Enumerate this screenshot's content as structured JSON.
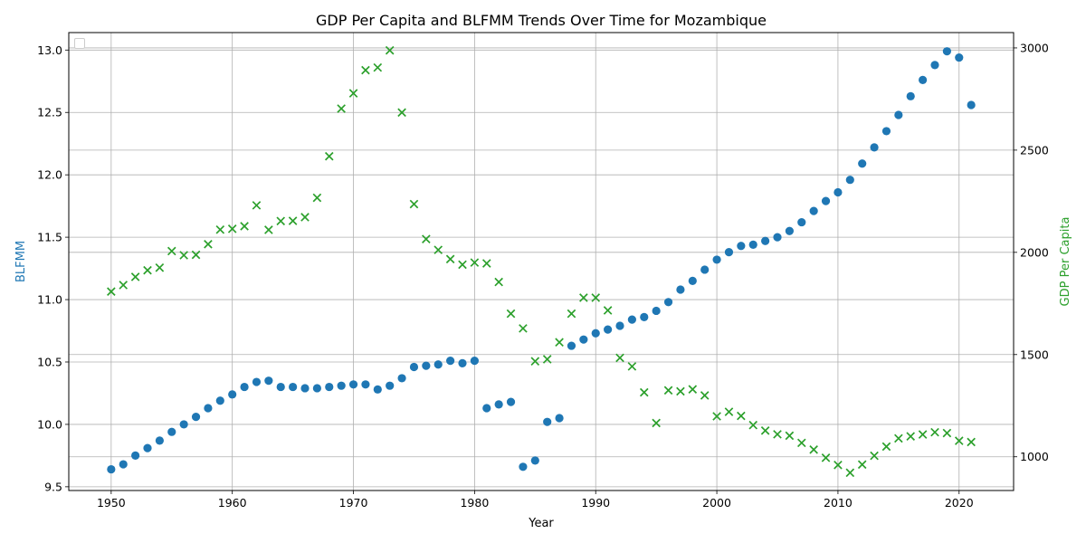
{
  "chart_data": {
    "type": "scatter",
    "title": "GDP Per Capita and BLFMM Trends Over Time for Mozambique",
    "xlabel": "Year",
    "ylabel_left": "BLFMM",
    "ylabel_right": "GDP Per Capita",
    "xlim": [
      1946.5,
      2024.5
    ],
    "ylim_left": [
      9.47,
      13.14
    ],
    "ylim_right": [
      835,
      3075
    ],
    "xticks": [
      1950,
      1960,
      1970,
      1980,
      1990,
      2000,
      2010,
      2020
    ],
    "yticks_left": [
      9.5,
      10.0,
      10.5,
      11.0,
      11.5,
      12.0,
      12.5,
      13.0
    ],
    "yticks_right": [
      1000,
      1500,
      2000,
      2500,
      3000
    ],
    "grid": true,
    "legend": "top-left (empty)",
    "colors": {
      "blfmm": "#1f77b4",
      "gdp": "#2ca02c",
      "grid": "#b0b0b0"
    },
    "x": [
      1950,
      1951,
      1952,
      1953,
      1954,
      1955,
      1956,
      1957,
      1958,
      1959,
      1960,
      1961,
      1962,
      1963,
      1964,
      1965,
      1966,
      1967,
      1968,
      1969,
      1970,
      1971,
      1972,
      1973,
      1974,
      1975,
      1976,
      1977,
      1978,
      1979,
      1980,
      1981,
      1982,
      1983,
      1984,
      1985,
      1986,
      1987,
      1988,
      1989,
      1990,
      1991,
      1992,
      1993,
      1994,
      1995,
      1996,
      1997,
      1998,
      1999,
      2000,
      2001,
      2002,
      2003,
      2004,
      2005,
      2006,
      2007,
      2008,
      2009,
      2010,
      2011,
      2012,
      2013,
      2014,
      2015,
      2016,
      2017,
      2018,
      2019,
      2020,
      2021
    ],
    "series": [
      {
        "name": "BLFMM",
        "axis": "left",
        "marker": "circle",
        "values": [
          9.64,
          9.68,
          9.75,
          9.81,
          9.87,
          9.94,
          10.0,
          10.06,
          10.13,
          10.19,
          10.24,
          10.3,
          10.34,
          10.35,
          10.3,
          10.3,
          10.29,
          10.29,
          10.3,
          10.31,
          10.32,
          10.32,
          10.28,
          10.31,
          10.37,
          10.46,
          10.47,
          10.48,
          10.51,
          10.49,
          10.51,
          10.13,
          10.16,
          10.18,
          9.66,
          9.71,
          10.02,
          10.05,
          10.63,
          10.68,
          10.73,
          10.76,
          10.79,
          10.84,
          10.86,
          10.91,
          10.98,
          11.08,
          11.15,
          11.24,
          11.32,
          11.38,
          11.43,
          11.44,
          11.47,
          11.5,
          11.55,
          11.62,
          11.71,
          11.79,
          11.86,
          11.96,
          12.09,
          12.22,
          12.35,
          12.48,
          12.63,
          12.76,
          12.88,
          12.99,
          12.94,
          12.56
        ]
      },
      {
        "name": "GDP Per Capita",
        "axis": "right",
        "marker": "x",
        "values": [
          1808,
          1840,
          1880,
          1912,
          1925,
          2006,
          1986,
          1988,
          2040,
          2111,
          2115,
          2128,
          2230,
          2110,
          2153,
          2154,
          2172,
          2267,
          2470,
          2703,
          2778,
          2891,
          2904,
          2988,
          2684,
          2236,
          2065,
          2012,
          1967,
          1940,
          1950,
          1946,
          1855,
          1700,
          1628,
          1467,
          1477,
          1560,
          1700,
          1778,
          1778,
          1716,
          1484,
          1442,
          1315,
          1165,
          1325,
          1320,
          1330,
          1300,
          1198,
          1220,
          1200,
          1155,
          1128,
          1110,
          1103,
          1068,
          1035,
          995,
          960,
          922,
          962,
          1005,
          1050,
          1090,
          1100,
          1109,
          1120,
          1116,
          1078,
          1072
        ]
      }
    ]
  }
}
